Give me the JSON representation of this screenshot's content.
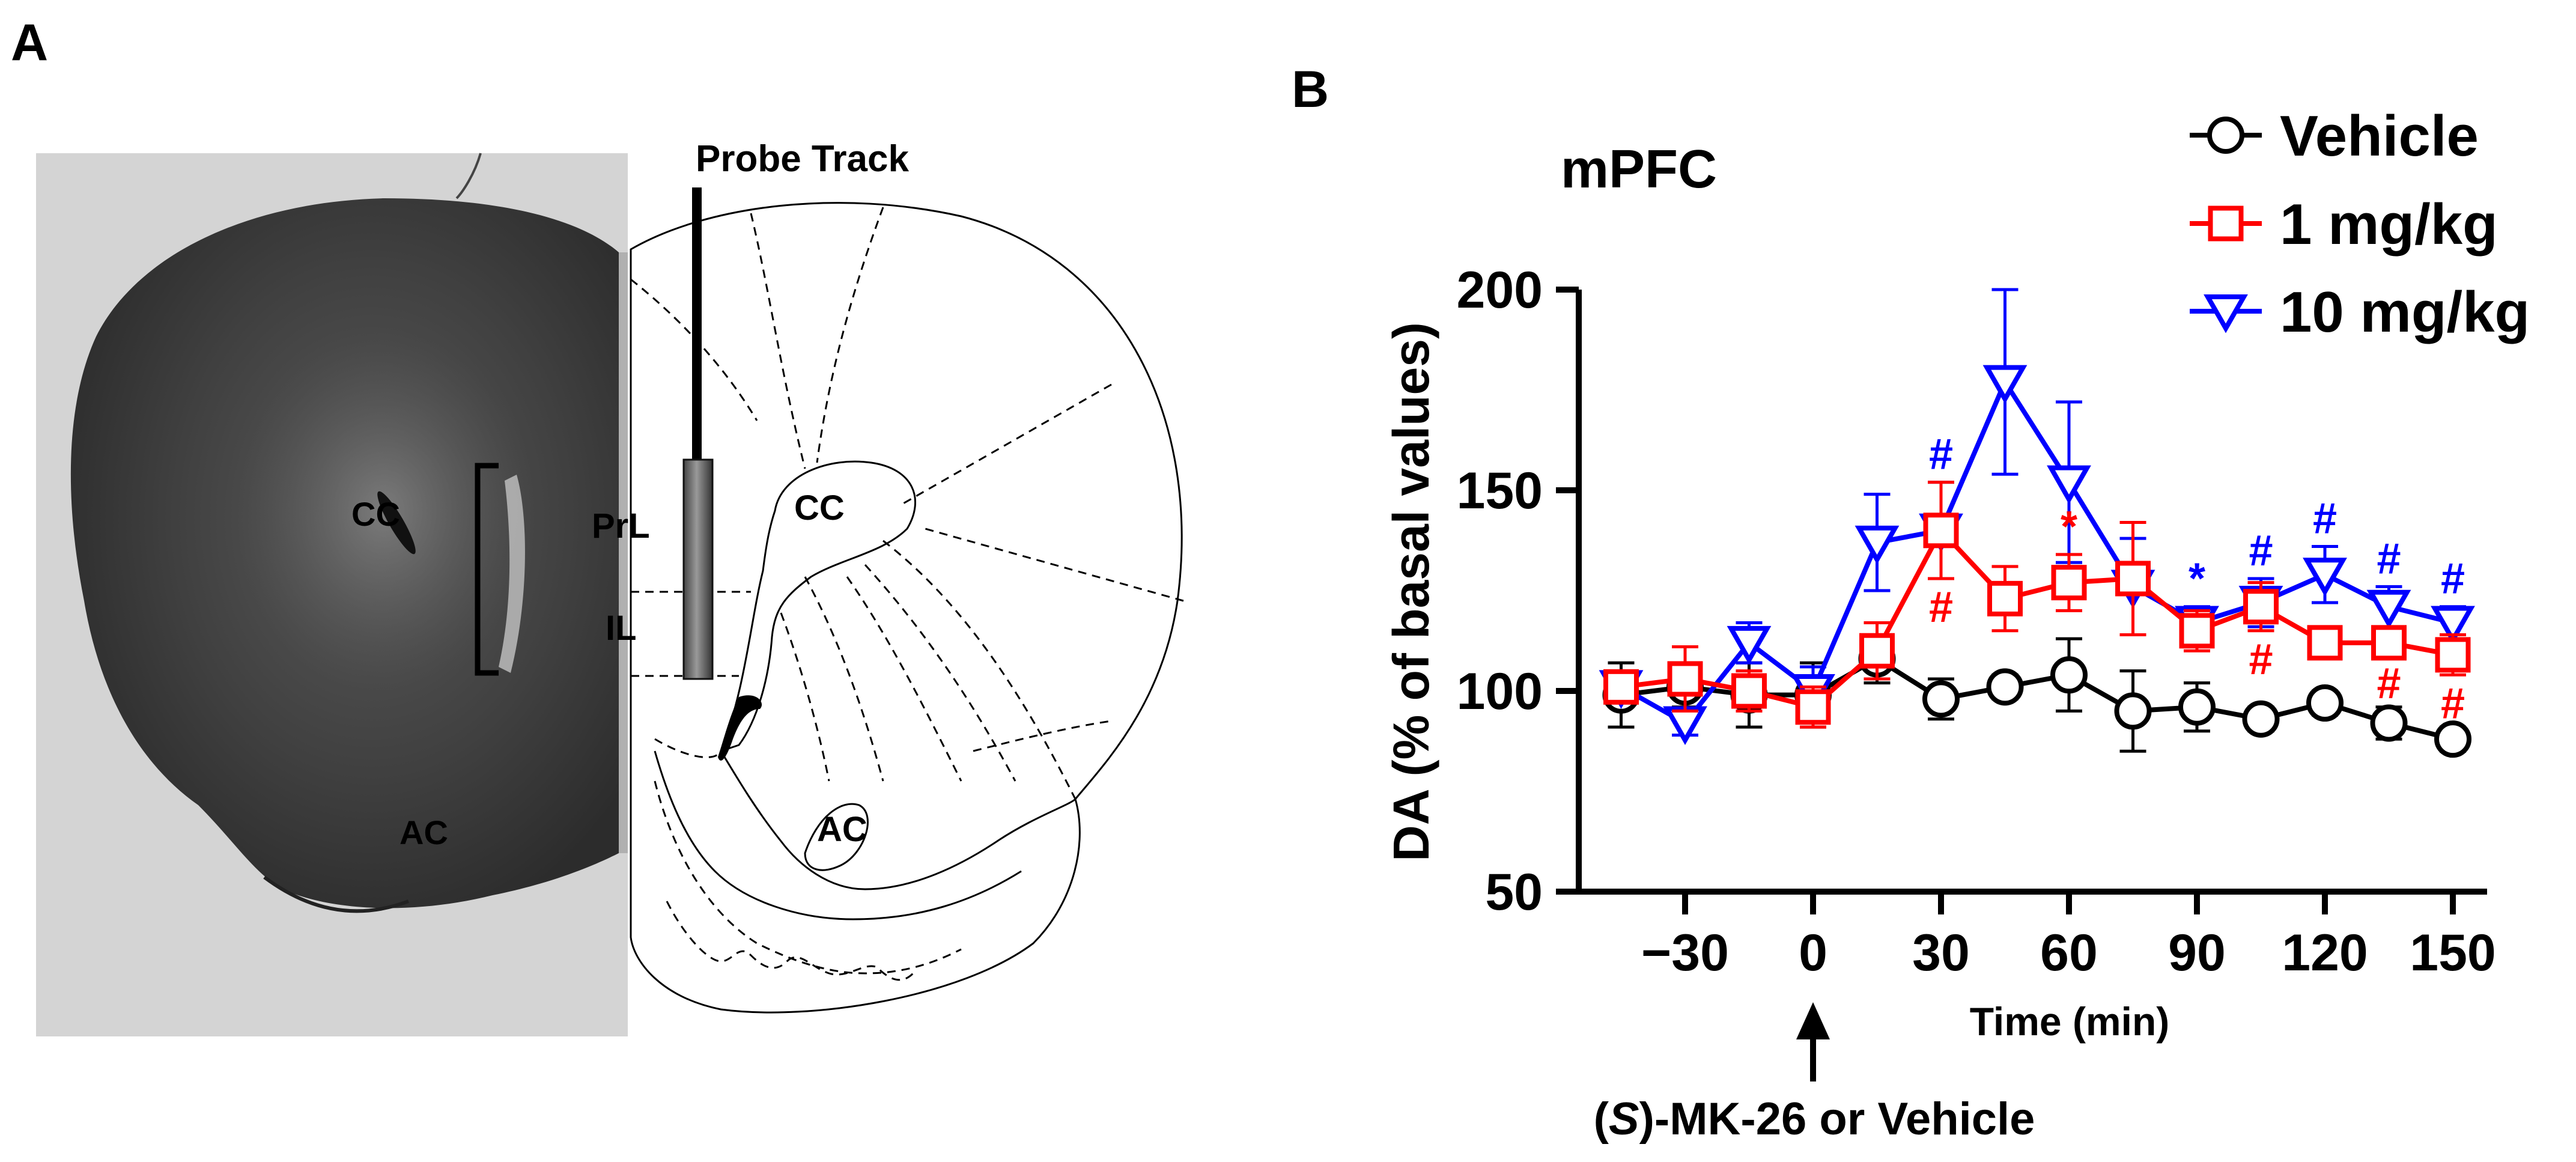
{
  "panel_a": {
    "label": "A",
    "probe_track_label": "Probe Track",
    "regions": {
      "cc_photo": "CC",
      "ac_photo": "AC",
      "prl": "PrL",
      "il": "IL",
      "cc_atlas": "CC",
      "ac_atlas": "AC"
    }
  },
  "panel_b": {
    "label": "B",
    "arrow_caption_italic": "S",
    "arrow_caption_rest": "-MK-26 or Vehicle",
    "arrow_caption_open": "(",
    "arrow_caption_close": ")"
  },
  "chart_data": {
    "type": "line",
    "title": "mPFC",
    "xlabel": "Time (min)",
    "ylabel": "DA (% of basal values)",
    "xlim": [
      -50,
      155
    ],
    "ylim": [
      50,
      200
    ],
    "xticks": [
      -30,
      0,
      30,
      60,
      90,
      120,
      150
    ],
    "xtick_labels": [
      "−30",
      "0",
      "30",
      "60",
      "90",
      "120",
      "150"
    ],
    "yticks": [
      50,
      100,
      150,
      200
    ],
    "ytick_labels": [
      "50",
      "100",
      "150",
      "200"
    ],
    "legend_position": "top-right",
    "series": [
      {
        "name": "Vehicle",
        "color": "#000000",
        "marker": "circle",
        "x": [
          -45,
          -30,
          -15,
          0,
          15,
          30,
          45,
          60,
          75,
          90,
          105,
          120,
          135,
          150
        ],
        "y": [
          99,
          101,
          99,
          99,
          108,
          98,
          101,
          104,
          95,
          96,
          93,
          97,
          92,
          88
        ],
        "err": [
          8,
          5,
          8,
          8,
          6,
          5,
          3,
          9,
          10,
          6,
          3,
          3,
          4,
          3
        ]
      },
      {
        "name": "1 mg/kg",
        "color": "#ff0000",
        "marker": "square",
        "x": [
          -45,
          -30,
          -15,
          0,
          15,
          30,
          45,
          60,
          75,
          90,
          105,
          120,
          135,
          150
        ],
        "y": [
          101,
          103,
          100,
          96,
          110,
          140,
          123,
          127,
          128,
          115,
          121,
          112,
          112,
          109
        ],
        "err": [
          4,
          8,
          5,
          5,
          7,
          12,
          8,
          7,
          14,
          5,
          6,
          3,
          3,
          5
        ]
      },
      {
        "name": "10 mg/kg",
        "color": "#0000ff",
        "marker": "triangle-down",
        "x": [
          -45,
          -30,
          -15,
          0,
          15,
          30,
          45,
          60,
          75,
          90,
          105,
          120,
          135,
          150
        ],
        "y": [
          101,
          92,
          112,
          100,
          137,
          140,
          177,
          152,
          126,
          117,
          122,
          129,
          121,
          117
        ],
        "err": [
          4,
          3,
          5,
          6,
          12,
          12,
          23,
          20,
          12,
          4,
          6,
          7,
          5,
          4
        ]
      }
    ],
    "annotations": [
      {
        "x": 30,
        "text": "#",
        "color": "#0000ff",
        "pos": "above",
        "series": 2
      },
      {
        "x": 30,
        "text": "#",
        "color": "#ff0000",
        "pos": "below",
        "series": 1
      },
      {
        "x": 60,
        "text": "*",
        "color": "#ff0000",
        "pos": "above",
        "series": 1
      },
      {
        "x": 90,
        "text": "*",
        "color": "#0000ff",
        "pos": "above",
        "series": 2
      },
      {
        "x": 105,
        "text": "#",
        "color": "#0000ff",
        "pos": "above",
        "series": 2
      },
      {
        "x": 105,
        "text": "#",
        "color": "#ff0000",
        "pos": "below",
        "series": 1
      },
      {
        "x": 120,
        "text": "#",
        "color": "#0000ff",
        "pos": "above",
        "series": 2
      },
      {
        "x": 135,
        "text": "#",
        "color": "#0000ff",
        "pos": "above",
        "series": 2
      },
      {
        "x": 135,
        "text": "#",
        "color": "#ff0000",
        "pos": "below",
        "series": 1
      },
      {
        "x": 150,
        "text": "#",
        "color": "#0000ff",
        "pos": "above",
        "series": 2
      },
      {
        "x": 150,
        "text": "#",
        "color": "#ff0000",
        "pos": "below",
        "series": 1
      }
    ]
  }
}
